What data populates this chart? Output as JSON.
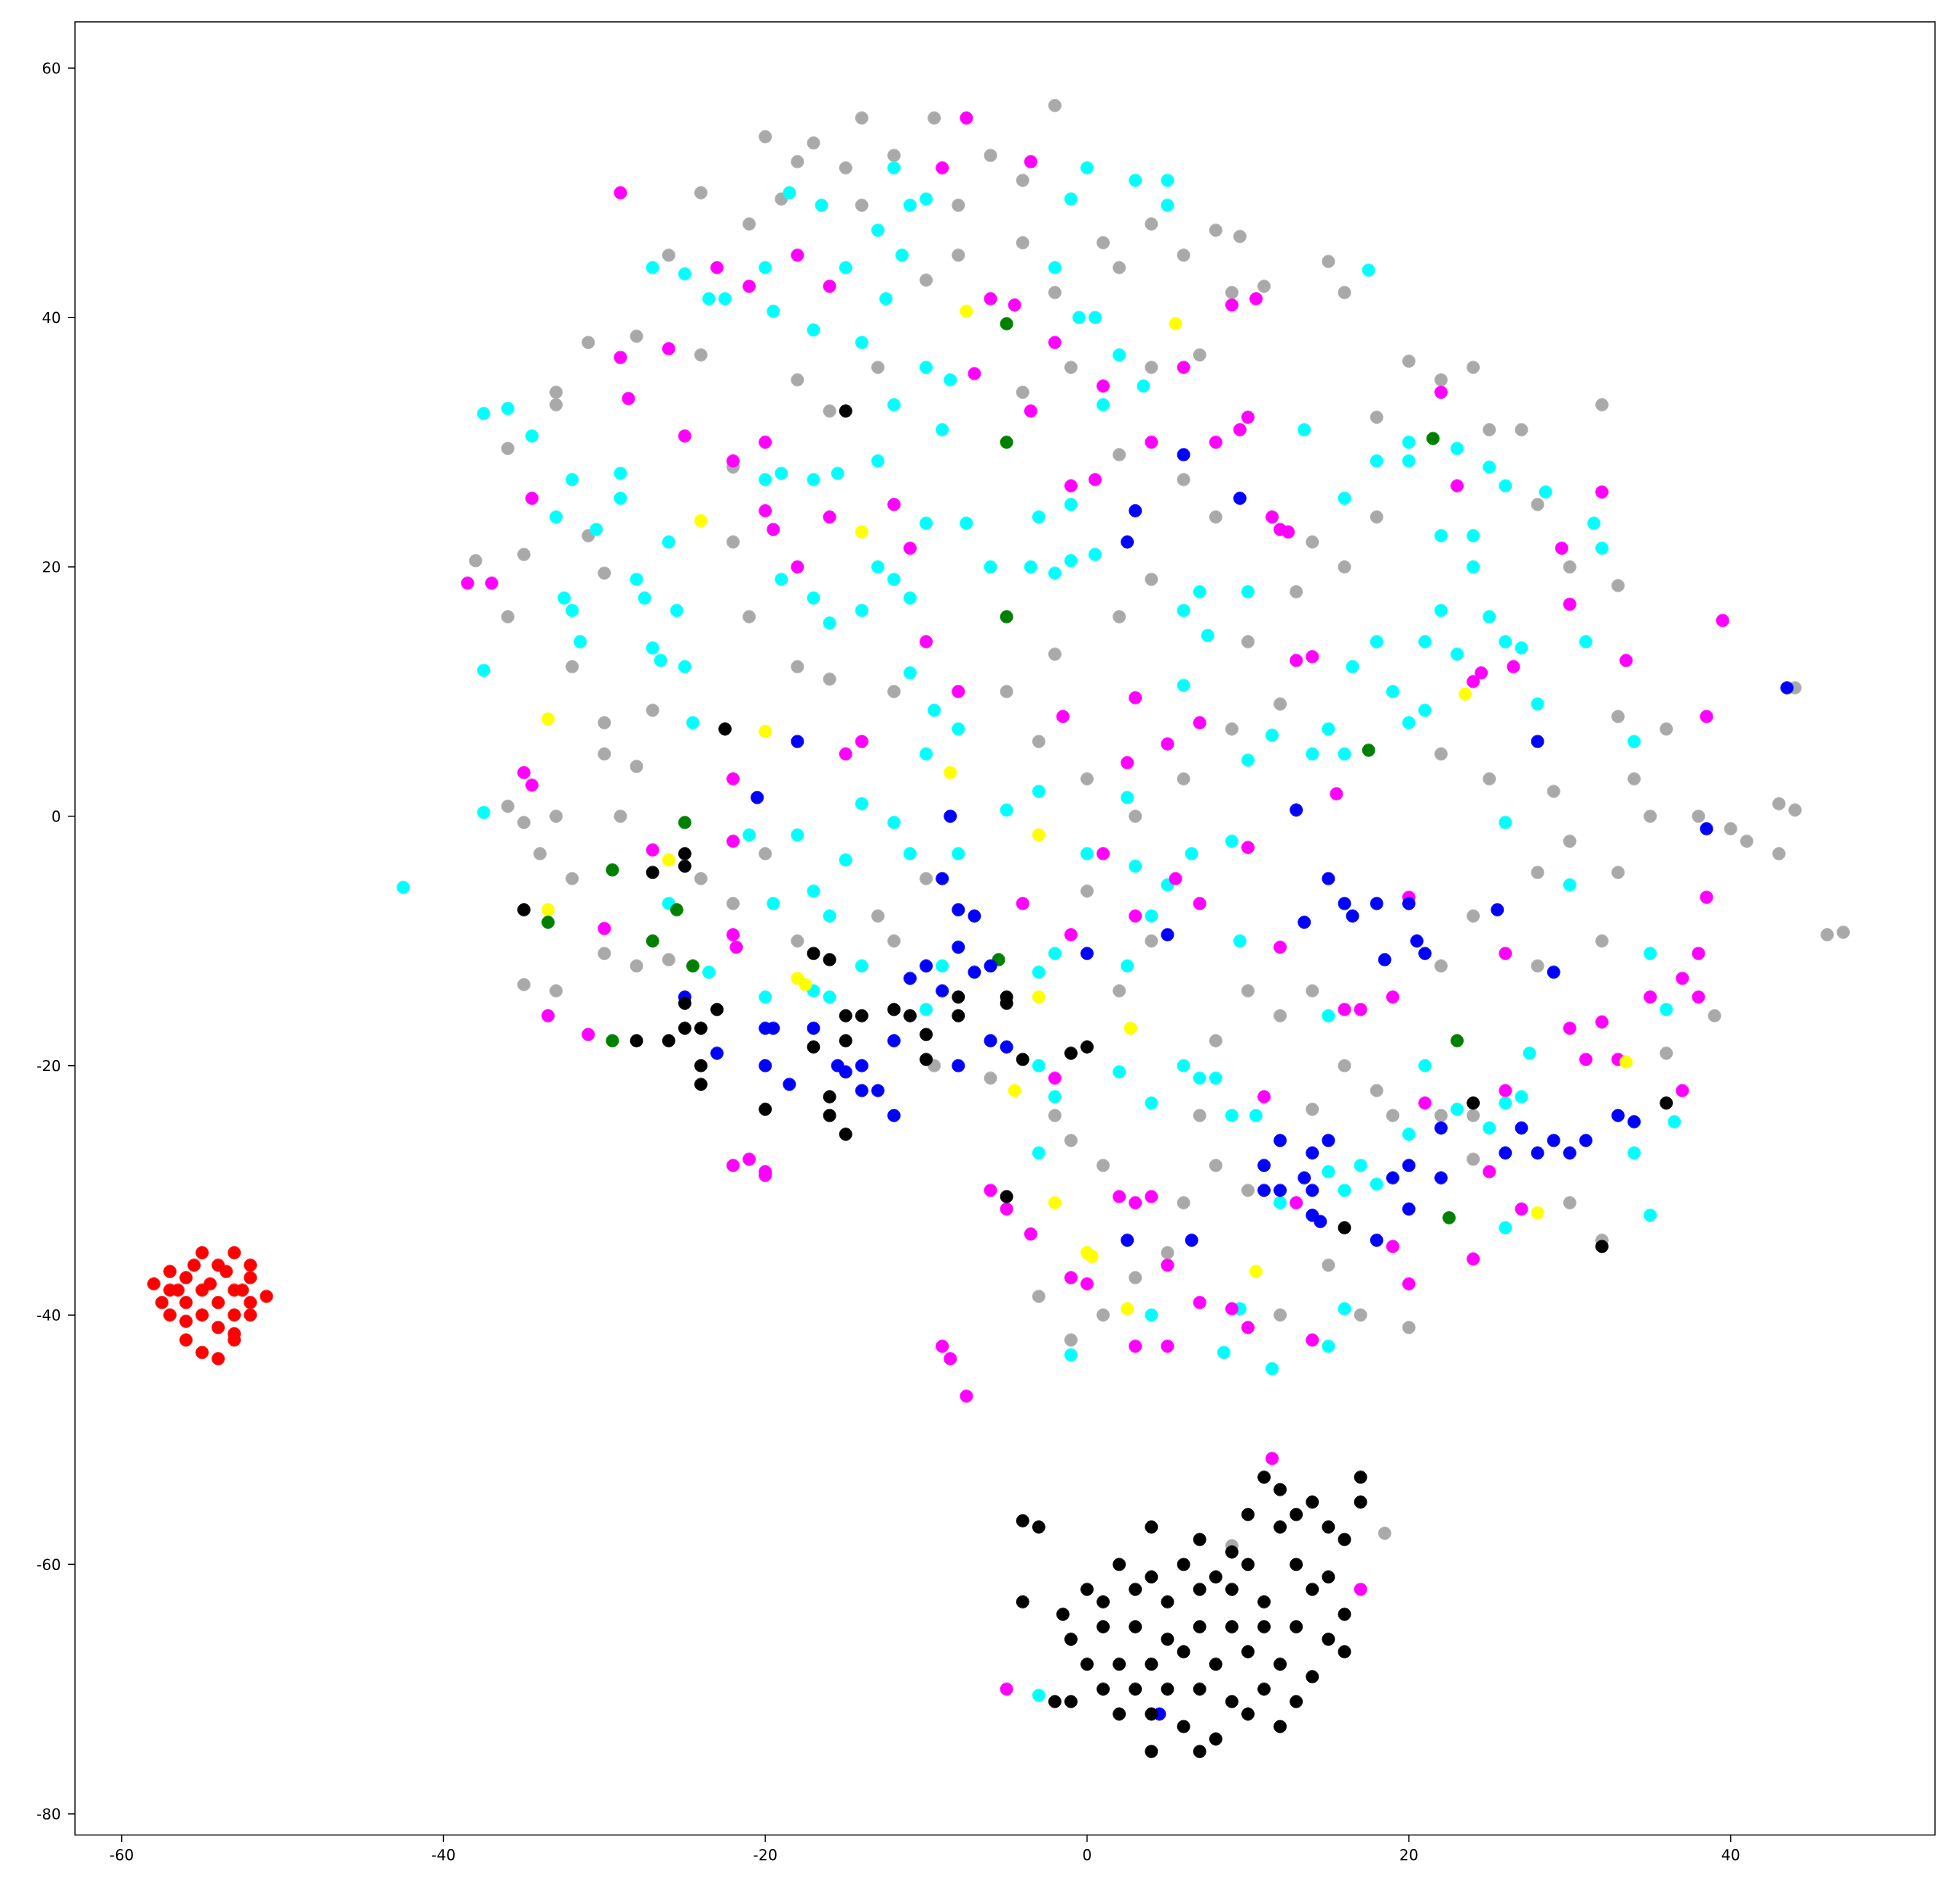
{
  "chart_data": {
    "type": "scatter",
    "xlim": [
      -62.9,
      52.7
    ],
    "ylim": [
      -81.7,
      63.7
    ],
    "xticks": [
      -60,
      -40,
      -20,
      0,
      20,
      40
    ],
    "yticks": [
      -80,
      -60,
      -40,
      -20,
      0,
      20,
      40,
      60
    ],
    "grid": false,
    "series": [
      {
        "color": "#a9a9a9",
        "x": [
          -2,
          -9.5,
          -14,
          -17,
          -20,
          -18,
          -15,
          -12,
          -6,
          -4,
          -8,
          -14,
          -19,
          -21,
          -24,
          -26,
          -28,
          -31,
          -33,
          -33,
          -36,
          -38,
          -35,
          -36,
          -31,
          -30,
          -32,
          -30,
          -30,
          -28,
          -27,
          -29,
          -33,
          -35,
          -36,
          -34,
          -32,
          -35,
          -33,
          -30,
          -28,
          -26,
          -24,
          -22,
          -20,
          -18,
          -13,
          -12,
          -9.5,
          -6,
          -10,
          -12,
          -16,
          -18,
          -21,
          -22,
          -22,
          -24,
          -18,
          -16,
          -13,
          -10,
          -8,
          -4,
          -2,
          1,
          2,
          4,
          6,
          8,
          9.5,
          9,
          11,
          7,
          4,
          -1,
          -4,
          2,
          6,
          8,
          4,
          2,
          -2,
          -5,
          -3,
          0,
          3,
          6,
          9,
          12,
          10,
          13,
          14,
          16,
          18,
          18,
          20,
          15,
          16,
          22,
          24,
          25,
          27,
          28,
          30,
          32,
          33,
          33,
          36,
          38,
          40,
          43,
          44,
          43,
          46,
          47,
          41,
          39,
          36,
          33,
          32,
          30,
          28,
          28,
          24,
          22,
          24,
          24,
          22,
          19,
          18,
          16,
          14,
          14,
          12,
          10,
          8,
          7,
          8,
          10,
          6,
          5,
          3,
          1,
          -1,
          -3,
          1,
          -1,
          -2,
          2,
          4,
          0,
          30,
          32,
          18.5,
          9,
          15,
          17,
          20,
          12,
          22,
          25,
          29,
          34,
          35,
          44
        ],
        "values": [
          57,
          56,
          56,
          54,
          54.5,
          52.5,
          52,
          53,
          53,
          51,
          49,
          49,
          49.5,
          47.5,
          50,
          45,
          38.5,
          38,
          34,
          33,
          29.5,
          20.5,
          21,
          16,
          22.5,
          19.5,
          12,
          7.5,
          5,
          4,
          8.5,
          0,
          0,
          -0.5,
          0.8,
          -3,
          -5,
          -13.5,
          -14,
          -11,
          -12,
          -11.5,
          -5,
          -7,
          -3,
          -10,
          -8,
          -10,
          -20,
          -21,
          -5,
          10,
          11,
          12,
          16,
          22,
          28,
          37,
          35,
          32.5,
          36,
          43,
          45,
          46,
          42,
          46,
          44,
          47.5,
          45,
          47,
          46.5,
          42,
          42.5,
          37,
          36,
          36,
          34,
          29,
          27,
          24,
          19,
          16,
          13,
          10,
          6,
          3,
          0,
          3,
          7,
          9,
          14,
          18,
          22,
          20,
          24,
          32,
          36.5,
          44.5,
          42,
          35,
          36,
          31,
          31,
          25,
          20,
          33,
          18.5,
          8,
          7,
          0,
          -1,
          1,
          0.5,
          -3,
          -9.5,
          -9.3,
          -2,
          -16,
          -19,
          -4.5,
          -10,
          -2,
          -4.5,
          -12,
          -8,
          -12,
          -27.5,
          -24,
          -24,
          -24,
          -22,
          -20,
          -23.5,
          -14,
          -16,
          -14,
          -18,
          -24,
          -28,
          -30,
          -31,
          -35,
          -37,
          -40,
          -42,
          -38.5,
          -28,
          -26,
          -24,
          -14,
          -10,
          -6,
          -31,
          -34,
          -57.5,
          -58.5,
          -36,
          -40,
          -41,
          -40,
          5,
          3,
          2,
          3,
          0,
          10.3
        ]
      },
      {
        "color": "#00ffff",
        "x": [
          -37.5,
          -36,
          -42.5,
          -37.5,
          -37.5,
          -34.5,
          -33,
          -32,
          -32.5,
          -32,
          -31.5,
          -30.5,
          -29,
          -29,
          -28,
          -27.5,
          -27,
          -26.5,
          -26,
          -25.5,
          -25,
          -24.5,
          -27,
          -25,
          -23.5,
          -22.5,
          -20,
          -19.5,
          -18.5,
          -16.5,
          -15,
          -13,
          -12,
          -11,
          -10,
          -11.5,
          -12.5,
          -14,
          -17,
          -10,
          -8.5,
          -12,
          -9,
          -13,
          -15.5,
          -17,
          -19,
          -13,
          -12,
          -11,
          -10,
          -7.5,
          -6,
          -3.5,
          -2,
          -1,
          0.5,
          -1,
          -3,
          -0.5,
          0.5,
          1,
          2,
          3,
          5,
          5,
          3.5,
          0,
          -1,
          -2,
          -20,
          -19,
          -17,
          -16,
          -14,
          -11,
          -9.5,
          -10,
          -8,
          -18,
          -14,
          -12,
          -11,
          -8,
          -5,
          -3,
          0,
          3,
          4,
          2.5,
          5,
          6.5,
          9,
          10,
          11.5,
          14,
          15,
          16,
          16.5,
          18,
          19,
          20,
          21,
          21,
          22,
          23,
          24,
          25,
          26,
          27,
          28,
          20,
          20,
          23,
          25,
          26,
          28.5,
          31.5,
          32,
          31,
          34,
          24,
          16,
          18,
          22,
          17.5,
          13.5,
          10,
          7,
          6,
          7.5,
          6,
          -21,
          -19.5,
          -17,
          -16,
          -15,
          -17,
          -16,
          -14,
          -20,
          -23.5,
          -26,
          -9,
          -10,
          -3,
          -2,
          -3,
          -2,
          -3,
          2,
          2.5,
          4,
          6,
          7,
          8,
          9,
          9.5,
          10.5,
          12,
          15,
          16,
          17,
          18,
          20,
          21,
          23,
          25,
          26,
          27,
          27.5,
          26,
          35,
          36.5,
          35,
          36,
          34,
          16,
          15,
          11.5,
          9.5,
          8.5,
          4,
          -1,
          -3,
          15,
          26,
          30
        ],
        "values": [
          32.3,
          32.7,
          -5.7,
          11.7,
          0.3,
          30.5,
          24,
          27,
          17.5,
          16.5,
          14,
          23,
          25.5,
          27.5,
          19,
          17.5,
          13.5,
          12.5,
          22,
          16.5,
          12,
          7.5,
          44,
          43.5,
          41.5,
          41.5,
          44,
          40.5,
          50,
          49,
          44,
          47,
          52,
          49,
          49.5,
          45,
          41.5,
          38,
          39,
          36,
          35,
          33,
          31,
          28.5,
          27.5,
          27,
          27.5,
          20,
          19,
          17.5,
          23.5,
          23.5,
          20,
          20,
          19.5,
          20.5,
          21,
          25,
          24,
          40,
          40,
          33,
          37,
          51,
          49,
          51,
          34.5,
          52,
          49.5,
          44,
          27,
          19,
          17.5,
          15.5,
          16.5,
          11.5,
          8.5,
          5,
          7,
          -1.5,
          1,
          -0.5,
          -3,
          -3,
          0.5,
          2,
          -3,
          -4,
          -8,
          1.5,
          -5.5,
          -3,
          -2,
          4.5,
          6.5,
          5,
          7,
          5,
          12,
          14,
          10,
          7.5,
          8.5,
          14,
          16.5,
          13,
          20,
          16,
          14,
          13.5,
          9,
          28.5,
          30,
          29.5,
          28,
          26.5,
          26,
          23.5,
          21.5,
          14,
          6,
          22.5,
          25.5,
          28.5,
          22.5,
          43.8,
          31,
          18,
          18,
          16.5,
          14.5,
          10.5,
          -1.5,
          -7,
          -6,
          -8,
          -3.5,
          -14,
          -14.5,
          -12,
          -14.5,
          -12.5,
          -7,
          -12,
          -15.5,
          -12.5,
          -11,
          -20,
          -22.5,
          -27,
          -20.5,
          -12,
          -23,
          -20,
          -21,
          -21,
          -24,
          -10,
          -24,
          -31,
          -28.5,
          -30,
          -28,
          -29.5,
          -25.5,
          -20,
          -23.5,
          -25,
          -23,
          -22.5,
          -19,
          -33,
          -32,
          -24.5,
          -11,
          -15.5,
          -27,
          -39.5,
          -42.5,
          -44.3,
          -39.5,
          -43,
          -40,
          -43.2,
          -70.5,
          -16,
          -0.5,
          -5.5
        ]
      },
      {
        "color": "#ff00ff",
        "x": [
          -29,
          -7.5,
          -9,
          -3.5,
          -16,
          -18,
          -23,
          -21,
          -4.5,
          -6,
          -2,
          -3.5,
          -7,
          -1,
          0.5,
          1,
          4,
          6,
          8,
          9.5,
          10,
          9,
          10.5,
          -29,
          -28.5,
          -26,
          -25,
          -22,
          -20,
          -20,
          -19.5,
          -18,
          -16,
          -12,
          -11,
          -14,
          -15,
          -10,
          -8,
          -38.5,
          -37,
          -34.5,
          -35,
          -34.5,
          -33.5,
          -31,
          -30,
          -27,
          -22,
          -22,
          -22,
          -21.8,
          -22,
          -21,
          -20,
          -20,
          -9,
          -8.5,
          -7.5,
          -6,
          -5,
          -3.5,
          -2,
          -1,
          0,
          2,
          3,
          4,
          3,
          5,
          5,
          7,
          9,
          10,
          11,
          12,
          13,
          14,
          16,
          17,
          19,
          20,
          20,
          19,
          21,
          24,
          25,
          26,
          26,
          27,
          30,
          31,
          32,
          33,
          35,
          37,
          37,
          38,
          38.5,
          38,
          39.5,
          38.5,
          29.5,
          30,
          32,
          33.5,
          26.5,
          24.5,
          23,
          22,
          24,
          11.5,
          12,
          12.5,
          13,
          14,
          15.5,
          7,
          3,
          -1.5,
          5,
          2.5,
          11.5,
          17,
          -5,
          10,
          5.5,
          7,
          1,
          -4,
          3,
          -1
        ],
        "values": [
          50,
          56,
          52,
          52.5,
          42.5,
          45,
          44,
          42.5,
          41,
          41.5,
          38,
          32.5,
          35.5,
          26.5,
          27,
          34.5,
          30,
          36,
          30,
          31,
          32,
          41,
          41.5,
          36.8,
          33.5,
          37.5,
          30.5,
          28.5,
          30,
          24.5,
          23,
          20,
          24,
          25,
          21.5,
          6,
          5,
          14,
          10,
          18.7,
          18.7,
          25.5,
          3.5,
          2.5,
          -16,
          -17.5,
          -9,
          -2.7,
          3,
          -2,
          -9.5,
          -10.5,
          -28,
          -27.5,
          -28.5,
          -28.8,
          -42.5,
          -43.5,
          -46.5,
          -30,
          -31.5,
          -33.5,
          -21,
          -37,
          -37.5,
          -30.5,
          -31,
          -30.5,
          -42.5,
          -36,
          -42.5,
          -39,
          -39.5,
          -41,
          -22.5,
          -10.5,
          -31,
          -42,
          -15.5,
          -15.5,
          -14.5,
          -6.5,
          -37.5,
          -34.5,
          -23,
          -35.5,
          -28.5,
          -22,
          -11,
          -31.5,
          -17,
          -19.5,
          -16.5,
          -19.5,
          -14.5,
          -22,
          -13,
          -11,
          -6.5,
          -14.5,
          15.7,
          8,
          21.5,
          17,
          26,
          12.5,
          12,
          11.5,
          26.5,
          34,
          10.8,
          24,
          23,
          22.8,
          12.5,
          12.8,
          1.8,
          7.5,
          9.5,
          8,
          5.8,
          4.3,
          -51.5,
          -62,
          -70,
          -2.5,
          -5,
          -7,
          -3,
          -7,
          -8,
          -9.5
        ]
      },
      {
        "color": "#ffff00",
        "x": [
          -7.5,
          5.5,
          -24,
          -14,
          -33.5,
          -20,
          -8.5,
          -26,
          -33.5,
          -18,
          -17.5,
          -3,
          -3,
          -4.5,
          -2,
          0,
          0.3,
          2.5,
          2.7,
          10.5,
          23.5,
          28,
          33.5
        ],
        "values": [
          40.5,
          39.5,
          23.7,
          22.8,
          7.8,
          6.8,
          3.5,
          -3.5,
          -7.5,
          -13,
          -13.5,
          -1.5,
          -14.5,
          -22,
          -31,
          -35,
          -35.3,
          -39.5,
          -17,
          -36.5,
          9.8,
          -31.8,
          -19.7
        ]
      },
      {
        "color": "#008000",
        "x": [
          -5,
          -5,
          -5,
          21.5,
          17.5,
          -25,
          -29.5,
          -25.5,
          -27,
          -24.5,
          -33.5,
          -29.5,
          -5.5,
          23,
          22.5
        ],
        "values": [
          39.5,
          30,
          16,
          30.3,
          5.3,
          -0.5,
          -4.3,
          -7.5,
          -10,
          -12,
          -8.5,
          -18,
          -11.5,
          -18,
          -32.2
        ]
      },
      {
        "color": "#0000ff",
        "x": [
          43.5,
          6,
          3,
          2.5,
          9.5,
          -20.5,
          -18,
          -8.5,
          -9,
          -8,
          -7,
          -8,
          -6,
          -7,
          -10,
          -11,
          -9,
          -6,
          -5,
          -8,
          -19.5,
          -20,
          -18.5,
          -15,
          -14,
          -13,
          -12,
          -12,
          -14,
          -17,
          -25,
          -23,
          -20,
          0,
          5,
          13.5,
          15,
          16,
          16.5,
          18,
          18.5,
          20,
          20.5,
          21,
          13,
          14,
          12,
          11,
          11,
          12,
          14,
          15,
          14,
          18,
          19,
          20,
          22,
          22,
          20,
          26,
          27,
          28,
          29,
          30,
          31,
          33,
          34,
          38.5,
          29,
          28,
          25.5,
          2.5,
          6.5,
          4.5,
          -15.5,
          13.5,
          14.5
        ],
        "values": [
          10.3,
          29,
          24.5,
          22,
          25.5,
          1.5,
          6,
          0,
          -5,
          -7.5,
          -8,
          -10.5,
          -12,
          -12.5,
          -12,
          -13,
          -14,
          -18,
          -18.5,
          -20,
          -17,
          -20,
          -21.5,
          -20.5,
          -20,
          -22,
          -18,
          -24,
          -22,
          -17,
          -14.5,
          -19,
          -17,
          -11,
          -9.5,
          -8.5,
          -5,
          -7,
          -8,
          -7,
          -11.5,
          -7,
          -10,
          -11,
          0.5,
          -27,
          -26,
          -28,
          -30,
          -30,
          -30,
          -26,
          -32,
          -34,
          -29,
          -28,
          -25,
          -29,
          -31.5,
          -27,
          -25,
          -27,
          -26,
          -27,
          -26,
          -24,
          -24.5,
          -1,
          -12.5,
          6,
          -7.5,
          -34,
          -34,
          -72,
          -20,
          -29,
          -32.5
        ]
      },
      {
        "color": "#000000",
        "x": [
          11,
          12,
          14,
          17,
          15,
          17,
          10,
          13,
          -4,
          -3,
          4,
          7,
          9,
          12,
          16,
          2,
          4,
          6,
          8,
          10,
          13,
          15,
          0,
          1,
          3,
          5,
          7,
          9,
          11,
          14,
          16,
          -1,
          1,
          3,
          5,
          7,
          9,
          11,
          13,
          15,
          0,
          2,
          4,
          6,
          8,
          10,
          12,
          14,
          16,
          1,
          3,
          5,
          7,
          9,
          11,
          13,
          -1,
          2,
          4,
          6,
          8,
          10,
          12,
          7,
          4,
          -4,
          -2,
          -1.5,
          -15,
          -22.5,
          -25,
          -25,
          -27,
          -35,
          -25,
          -23,
          -24,
          -25,
          -26,
          -24,
          -24,
          -28,
          -20,
          -17,
          -16,
          -17,
          -15,
          -15,
          -14,
          -16,
          -16,
          -15,
          -12,
          -11,
          -10,
          -10,
          -8,
          -8,
          -4,
          -1,
          0,
          -5,
          16,
          24,
          32,
          36,
          -5,
          -5
        ],
        "values": [
          -53,
          -54,
          -55,
          -53,
          -57,
          -55,
          -56,
          -56,
          -56.5,
          -57,
          -57,
          -58,
          -59,
          -57,
          -58,
          -60,
          -61,
          -60,
          -61,
          -60,
          -60,
          -61,
          -62,
          -63,
          -62,
          -63,
          -62,
          -62,
          -63,
          -62,
          -64,
          -66,
          -65,
          -65,
          -66,
          -65,
          -65,
          -65,
          -65,
          -66,
          -68,
          -68,
          -68,
          -67,
          -68,
          -67,
          -68,
          -69,
          -67,
          -70,
          -70,
          -70,
          -70,
          -71,
          -70,
          -71,
          -71,
          -72,
          -72,
          -73,
          -74,
          -72,
          -73,
          -75,
          -75,
          -63,
          -71,
          -64,
          32.5,
          7,
          -3,
          -4,
          -4.5,
          -7.5,
          -15,
          -15.5,
          -17,
          -17,
          -18,
          -20,
          -21.5,
          -18,
          -23.5,
          -11,
          -11.5,
          -18.5,
          -18,
          -16,
          -16,
          -22.5,
          -24,
          -25.5,
          -15.5,
          -16,
          -17.5,
          -19.5,
          -14.5,
          -16,
          -19.5,
          -19,
          -18.5,
          -30.5,
          -33,
          -23,
          -34.5,
          -23,
          -14.5,
          -15
        ]
      },
      {
        "color": "#ff0000",
        "x": [
          -55,
          -53,
          -52,
          -57,
          -56,
          -54,
          -55,
          -57,
          -58,
          -56,
          -54,
          -53,
          -52,
          -52,
          -51,
          -53,
          -55,
          -57,
          -54,
          -56,
          -55,
          -54,
          -53,
          -53,
          -52,
          -56,
          -57.5,
          -55.5,
          -54.5,
          -53.5,
          -56.5,
          -52.5
        ],
        "values": [
          -35,
          -35,
          -36,
          -36.5,
          -37,
          -36,
          -38,
          -38,
          -37.5,
          -39,
          -39,
          -38,
          -37,
          -39,
          -38.5,
          -40,
          -40,
          -40,
          -41,
          -42,
          -43,
          -43.5,
          -42,
          -41.5,
          -40,
          -40.5,
          -39,
          -36,
          -37.5,
          -36.5,
          -38,
          -38
        ]
      }
    ]
  }
}
